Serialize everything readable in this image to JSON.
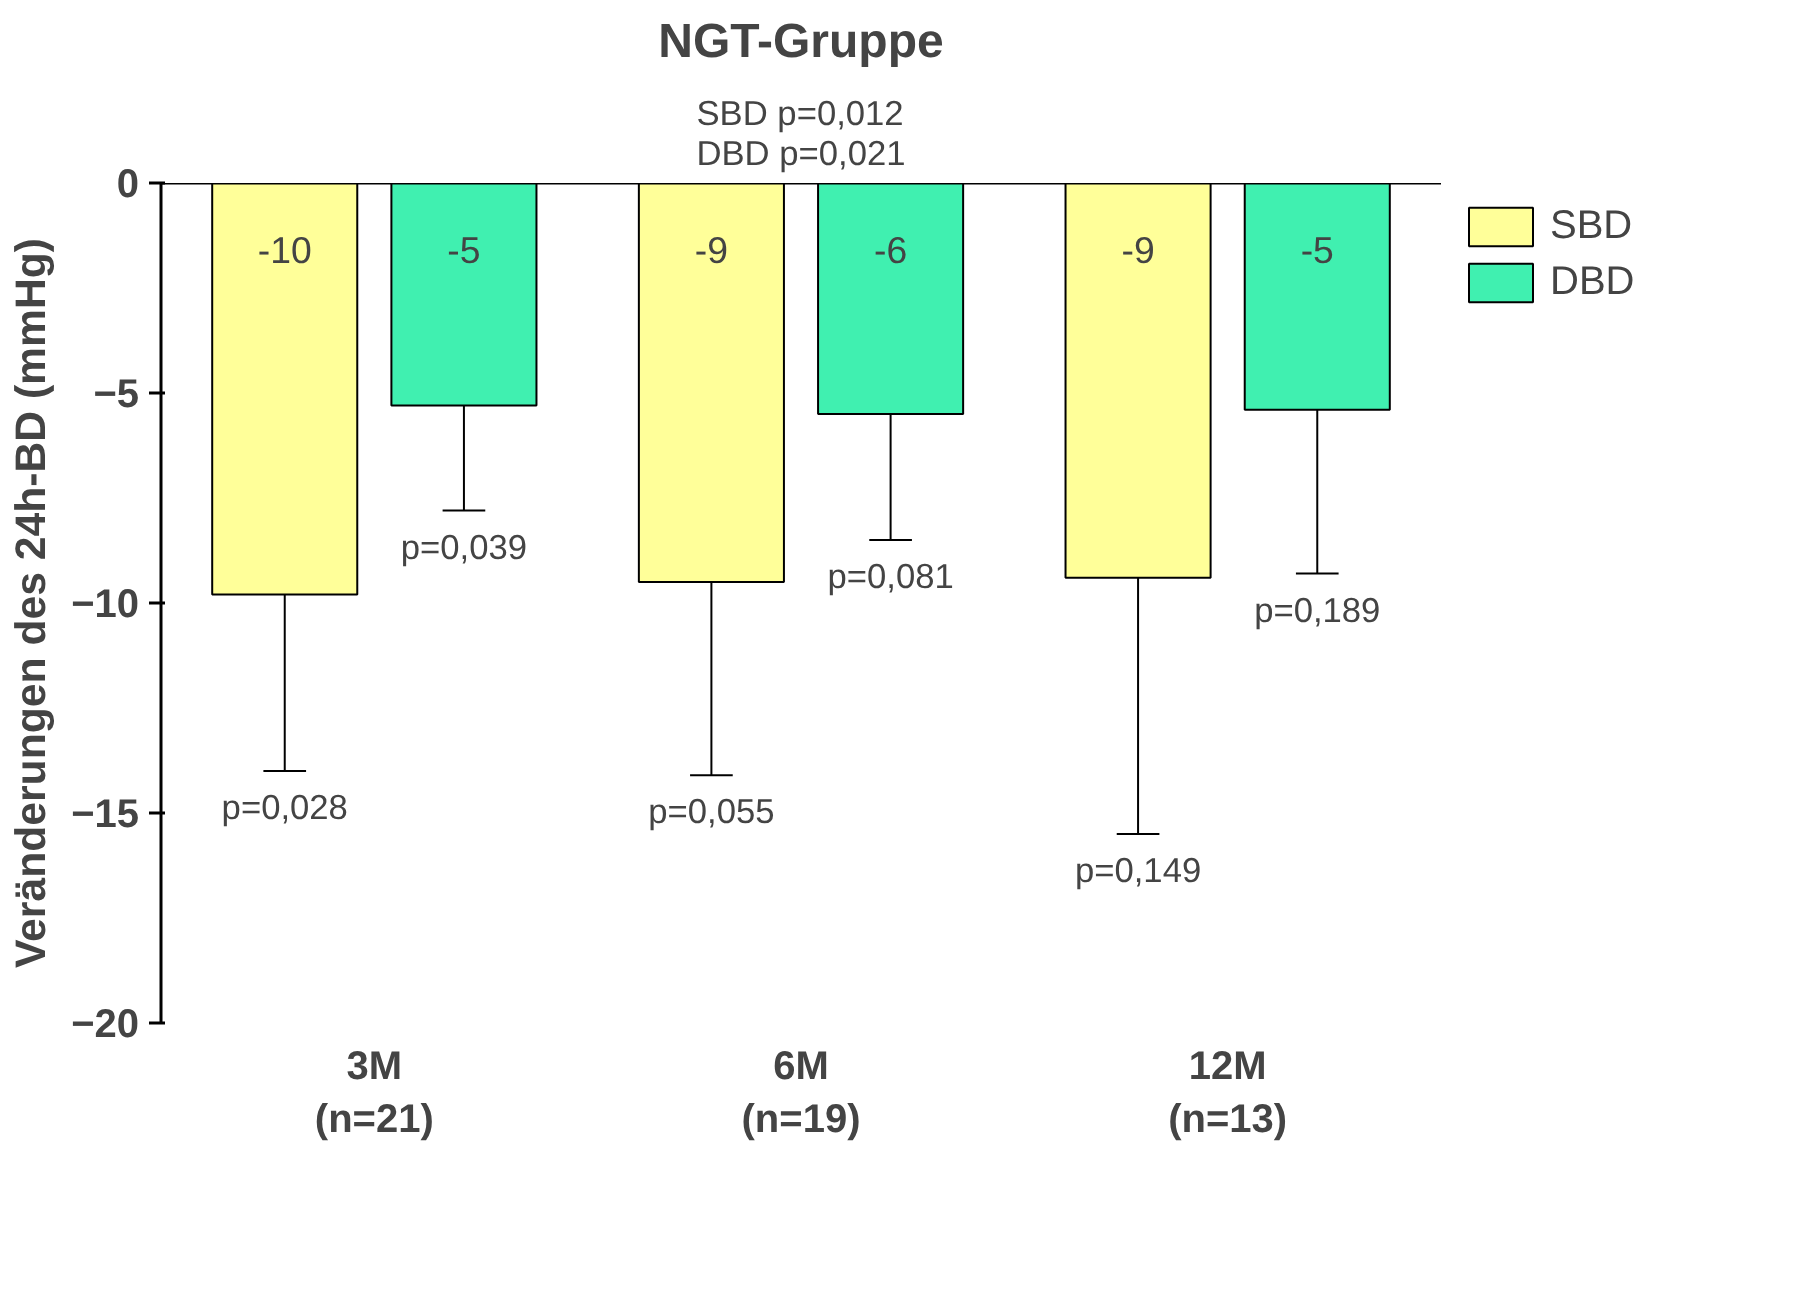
{
  "chart_data": {
    "type": "bar",
    "title": "NGT-Gruppe",
    "subtitle": "SBD p=0,012\nDBD p=0,021",
    "ylabel": "Veränderungen des 24h-BD (mmHg)",
    "categories": [
      "3M\n(n=21)",
      "6M\n(n=19)",
      "12M\n(n=13)"
    ],
    "series": [
      {
        "name": "SBD",
        "color": "#ffff99",
        "values": [
          -9.8,
          -9.5,
          -9.4
        ],
        "errors": [
          [
            -14.0,
            -9.8
          ],
          [
            -14.1,
            -9.5
          ],
          [
            -15.5,
            -9.4
          ]
        ],
        "value_labels": [
          "-10",
          "-9",
          "-9"
        ]
      },
      {
        "name": "DBD",
        "color": "#40f0b0",
        "values": [
          -5.3,
          -5.5,
          -5.4
        ],
        "errors": [
          [
            -7.8,
            -5.3
          ],
          [
            -8.5,
            -5.5
          ],
          [
            -9.3,
            -5.4
          ]
        ],
        "value_labels": [
          "-5",
          "-6",
          "-5"
        ]
      }
    ],
    "annotations": [
      "p=0,028",
      "p=0,039",
      "p=0,055",
      "p=0,081",
      "p=0,149",
      "p=0,189"
    ],
    "ylim": [
      -20,
      0
    ],
    "yticks": [
      0,
      -5,
      -10,
      -15,
      -20
    ],
    "grid": false,
    "legend": "top right"
  }
}
